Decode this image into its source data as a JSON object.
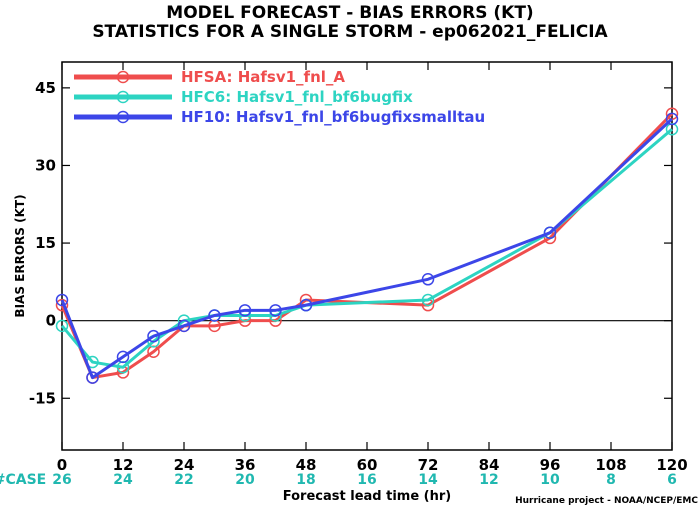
{
  "colors": {
    "HFSA": "#ef4d4d",
    "HFC6": "#2dd4c2",
    "HF10": "#3c46e8",
    "case": "#20b8b0"
  },
  "chart_data": {
    "type": "line",
    "title": "MODEL FORECAST - BIAS ERRORS (KT)",
    "subtitle": "STATISTICS FOR A SINGLE STORM - ep062021_FELICIA",
    "xlabel": "Forecast lead time (hr)",
    "ylabel": "BIAS ERRORS (KT)",
    "xlim": [
      0,
      120
    ],
    "ylim": [
      -25,
      50
    ],
    "xticks": [
      0,
      12,
      24,
      36,
      48,
      60,
      72,
      84,
      96,
      108,
      120
    ],
    "yticks": [
      -15,
      0,
      15,
      30,
      45
    ],
    "legend_position": "top-left",
    "case_label": "#CASE",
    "cases": [
      {
        "x": 0,
        "n": "26"
      },
      {
        "x": 12,
        "n": "24"
      },
      {
        "x": 24,
        "n": "22"
      },
      {
        "x": 36,
        "n": "20"
      },
      {
        "x": 48,
        "n": "18"
      },
      {
        "x": 60,
        "n": "16"
      },
      {
        "x": 72,
        "n": "14"
      },
      {
        "x": 84,
        "n": "12"
      },
      {
        "x": 96,
        "n": "10"
      },
      {
        "x": 108,
        "n": "8"
      },
      {
        "x": 120,
        "n": "6"
      }
    ],
    "series": [
      {
        "key": "HFSA",
        "label": "HFSA: Hafsv1_fnl_A",
        "color": "#ef4d4d",
        "x": [
          0,
          6,
          12,
          18,
          24,
          30,
          36,
          42,
          48,
          72,
          96,
          120
        ],
        "y": [
          3,
          -11,
          -10,
          -6,
          -1,
          -1,
          0,
          0,
          4,
          3,
          16,
          40
        ]
      },
      {
        "key": "HFC6",
        "label": "HFC6: Hafsv1_fnl_bf6bugfix",
        "color": "#2dd4c2",
        "x": [
          0,
          6,
          12,
          18,
          24,
          30,
          36,
          42,
          48,
          72,
          96,
          120
        ],
        "y": [
          -1,
          -8,
          -9,
          -4,
          0,
          1,
          1,
          1,
          3,
          4,
          17,
          37
        ]
      },
      {
        "key": "HF10",
        "label": "HF10: Hafsv1_fnl_bf6bugfixsmalltau",
        "color": "#3c46e8",
        "x": [
          0,
          6,
          12,
          18,
          24,
          30,
          36,
          42,
          48,
          72,
          96,
          120
        ],
        "y": [
          4,
          -11,
          -7,
          -3,
          -1,
          1,
          2,
          2,
          3,
          8,
          17,
          39
        ]
      }
    ]
  },
  "credit": "Hurricane project - NOAA/NCEP/EMC"
}
